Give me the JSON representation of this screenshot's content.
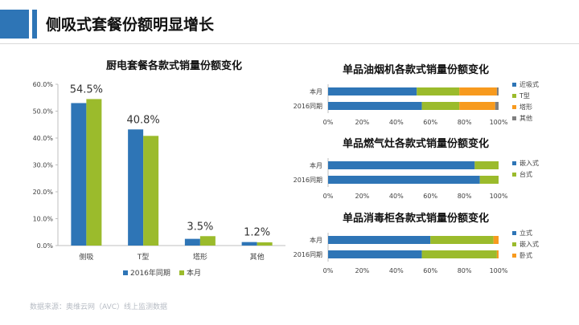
{
  "page": {
    "title": "侧吸式套餐份额明显增长",
    "source": "数据来源：奥维云网（AVC）线上监测数据"
  },
  "colors": {
    "accent": "#2e75b6",
    "series_2016": "#2e75b6",
    "series_this_month": "#9bbb2c",
    "orange": "#f79a1e",
    "gray": "#7f7f7f"
  },
  "chart_data": [
    {
      "type": "bar",
      "title": "厨电套餐各款式销量份额变化",
      "categories": [
        "侧吸",
        "T型",
        "塔形",
        "其他"
      ],
      "series": [
        {
          "name": "2016年同期",
          "values": [
            0.53,
            0.432,
            0.025,
            0.013
          ]
        },
        {
          "name": "本月",
          "values": [
            0.545,
            0.408,
            0.035,
            0.012
          ]
        }
      ],
      "data_labels": [
        "54.5%",
        "40.8%",
        "3.5%",
        "1.2%"
      ],
      "ylim": [
        0,
        0.6
      ],
      "yticks": [
        "0.0%",
        "10.0%",
        "20.0%",
        "30.0%",
        "40.0%",
        "50.0%",
        "60.0%"
      ],
      "legend_position": "bottom"
    },
    {
      "type": "bar",
      "orientation": "horizontal-stacked-100",
      "title": "单品油烟机各款式销量份额变化",
      "categories": [
        "本月",
        "2016同期"
      ],
      "series": [
        {
          "name": "近吸式",
          "values": [
            0.52,
            0.55
          ]
        },
        {
          "name": "T型",
          "values": [
            0.25,
            0.22
          ]
        },
        {
          "name": "塔形",
          "values": [
            0.22,
            0.21
          ]
        },
        {
          "name": "其他",
          "values": [
            0.01,
            0.02
          ]
        }
      ],
      "xticks": [
        "0%",
        "20%",
        "40%",
        "60%",
        "80%",
        "100%"
      ],
      "legend_position": "right"
    },
    {
      "type": "bar",
      "orientation": "horizontal-stacked-100",
      "title": "单品燃气灶各款式销量份额变化",
      "categories": [
        "本月",
        "2016同期"
      ],
      "series": [
        {
          "name": "嵌入式",
          "values": [
            0.86,
            0.89
          ]
        },
        {
          "name": "台式",
          "values": [
            0.14,
            0.11
          ]
        }
      ],
      "xticks": [
        "0%",
        "20%",
        "40%",
        "60%",
        "80%",
        "100%"
      ],
      "legend_position": "right"
    },
    {
      "type": "bar",
      "orientation": "horizontal-stacked-100",
      "title": "单品消毒柜各款式销量份额变化",
      "categories": [
        "本月",
        "2016同期"
      ],
      "series": [
        {
          "name": "立式",
          "values": [
            0.6,
            0.55
          ]
        },
        {
          "name": "嵌入式",
          "values": [
            0.37,
            0.44
          ]
        },
        {
          "name": "卧式",
          "values": [
            0.03,
            0.01
          ]
        }
      ],
      "xticks": [
        "0%",
        "20%",
        "40%",
        "60%",
        "80%",
        "100%"
      ],
      "legend_position": "right"
    }
  ]
}
